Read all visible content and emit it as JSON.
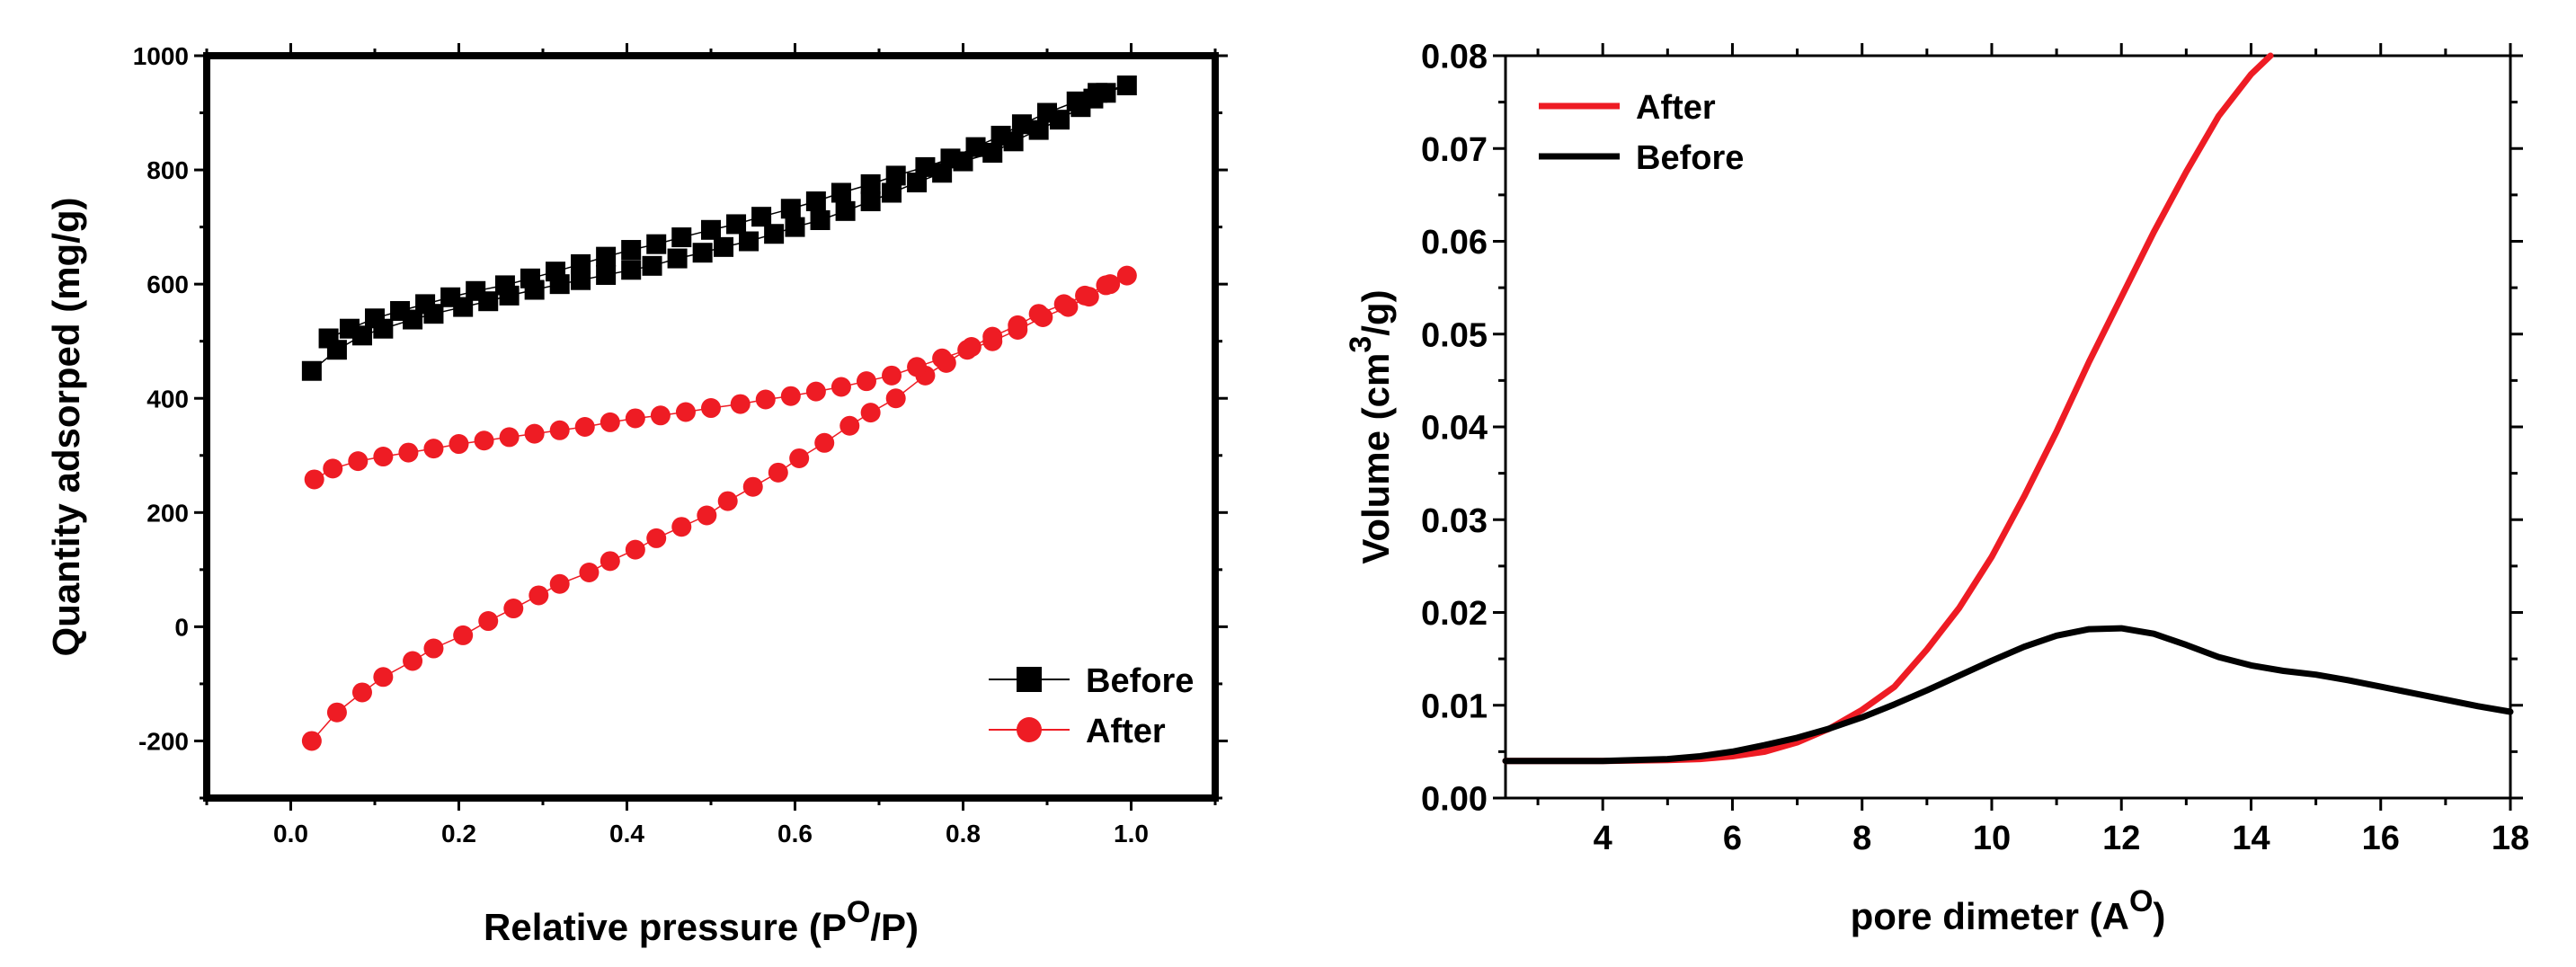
{
  "colors": {
    "before": "#000000",
    "after": "#ee1c24",
    "frame": "#000000"
  },
  "chart_data": [
    {
      "type": "scatter",
      "title": "",
      "xlabel": {
        "prefix": "Relative pressure (P",
        "sup": "O",
        "suffix": "/P)"
      },
      "ylabel": "Quantity adsorped (mg/g)",
      "xlim": [
        -0.1,
        1.1
      ],
      "ylim": [
        -300,
        1000
      ],
      "xticks": [
        0.0,
        0.2,
        0.4,
        0.6,
        0.8,
        1.0
      ],
      "xtick_labels": [
        "0.0",
        "0.2",
        "0.4",
        "0.6",
        "0.8",
        "1.0"
      ],
      "yticks": [
        -200,
        0,
        200,
        400,
        600,
        800,
        1000
      ],
      "ytick_labels": [
        "-200",
        "0",
        "200",
        "400",
        "600",
        "800",
        "1000"
      ],
      "legend_position": "bottom-right",
      "series": [
        {
          "name": "Before",
          "marker": "square",
          "color_key": "before",
          "x": [
            0.025,
            0.055,
            0.085,
            0.11,
            0.145,
            0.17,
            0.205,
            0.235,
            0.26,
            0.29,
            0.32,
            0.345,
            0.375,
            0.405,
            0.43,
            0.46,
            0.49,
            0.515,
            0.545,
            0.575,
            0.6,
            0.63,
            0.66,
            0.69,
            0.715,
            0.745,
            0.775,
            0.8,
            0.835,
            0.86,
            0.89,
            0.915,
            0.94,
            0.955,
            0.97,
            0.995,
            0.96,
            0.935,
            0.9,
            0.87,
            0.845,
            0.815,
            0.785,
            0.755,
            0.72,
            0.69,
            0.655,
            0.625,
            0.595,
            0.56,
            0.53,
            0.5,
            0.465,
            0.435,
            0.405,
            0.375,
            0.345,
            0.315,
            0.285,
            0.255,
            0.22,
            0.19,
            0.16,
            0.13,
            0.1,
            0.07,
            0.045
          ],
          "y": [
            448,
            485,
            510,
            522,
            538,
            548,
            560,
            570,
            580,
            590,
            600,
            607,
            616,
            625,
            632,
            645,
            655,
            665,
            675,
            688,
            700,
            712,
            728,
            745,
            760,
            778,
            795,
            815,
            830,
            850,
            870,
            888,
            910,
            925,
            935,
            948,
            935,
            920,
            900,
            880,
            860,
            840,
            820,
            805,
            790,
            775,
            760,
            745,
            732,
            718,
            705,
            695,
            682,
            670,
            660,
            648,
            635,
            622,
            610,
            598,
            588,
            577,
            565,
            553,
            540,
            522,
            505
          ]
        },
        {
          "name": "After",
          "marker": "circle",
          "color_key": "after",
          "x": [
            0.025,
            0.055,
            0.085,
            0.11,
            0.145,
            0.17,
            0.205,
            0.235,
            0.265,
            0.295,
            0.32,
            0.355,
            0.38,
            0.41,
            0.435,
            0.465,
            0.495,
            0.52,
            0.55,
            0.58,
            0.605,
            0.635,
            0.665,
            0.69,
            0.72,
            0.755,
            0.78,
            0.81,
            0.835,
            0.865,
            0.89,
            0.92,
            0.945,
            0.97,
            0.995,
            0.975,
            0.95,
            0.925,
            0.895,
            0.865,
            0.835,
            0.805,
            0.775,
            0.745,
            0.715,
            0.685,
            0.655,
            0.625,
            0.595,
            0.565,
            0.535,
            0.5,
            0.47,
            0.44,
            0.41,
            0.38,
            0.35,
            0.32,
            0.29,
            0.26,
            0.23,
            0.2,
            0.17,
            0.14,
            0.11,
            0.08,
            0.05,
            0.028
          ],
          "y": [
            -200,
            -150,
            -115,
            -88,
            -60,
            -38,
            -15,
            10,
            32,
            55,
            75,
            95,
            115,
            135,
            155,
            175,
            195,
            220,
            245,
            270,
            295,
            322,
            352,
            375,
            400,
            440,
            462,
            490,
            508,
            528,
            548,
            565,
            580,
            598,
            615,
            600,
            578,
            560,
            542,
            520,
            500,
            485,
            470,
            455,
            440,
            430,
            420,
            412,
            404,
            398,
            390,
            383,
            376,
            370,
            365,
            358,
            350,
            344,
            338,
            332,
            326,
            320,
            312,
            305,
            298,
            290,
            277,
            258
          ]
        }
      ]
    },
    {
      "type": "line",
      "title": "",
      "xlabel": {
        "prefix": "pore dimeter (A",
        "sup": "O",
        "suffix": ")"
      },
      "ylabel": {
        "prefix": "Volume (cm",
        "sup": "3",
        "suffix": "/g)"
      },
      "xlim": [
        2.5,
        18
      ],
      "ylim": [
        0.0,
        0.08
      ],
      "xticks": [
        4,
        6,
        8,
        10,
        12,
        14,
        16,
        18
      ],
      "xtick_labels": [
        "4",
        "6",
        "8",
        "10",
        "12",
        "14",
        "16",
        "18"
      ],
      "yticks": [
        0.0,
        0.01,
        0.02,
        0.03,
        0.04,
        0.05,
        0.06,
        0.07,
        0.08
      ],
      "ytick_labels": [
        "0.00",
        "0.01",
        "0.02",
        "0.03",
        "0.04",
        "0.05",
        "0.06",
        "0.07",
        "0.08"
      ],
      "legend_position": "top-left",
      "series": [
        {
          "name": "After",
          "color_key": "after",
          "x": [
            2.5,
            3,
            4,
            5,
            5.5,
            6,
            6.5,
            7,
            7.5,
            8,
            8.5,
            9,
            9.5,
            10,
            10.5,
            11,
            11.5,
            12,
            12.5,
            13,
            13.5,
            14,
            14.3
          ],
          "y": [
            0.004,
            0.004,
            0.004,
            0.0041,
            0.0042,
            0.0045,
            0.005,
            0.006,
            0.0075,
            0.0095,
            0.012,
            0.016,
            0.0205,
            0.026,
            0.0325,
            0.0395,
            0.047,
            0.054,
            0.061,
            0.0675,
            0.0735,
            0.078,
            0.08
          ]
        },
        {
          "name": "Before",
          "color_key": "before",
          "x": [
            2.5,
            3,
            4,
            5,
            5.5,
            6,
            6.5,
            7,
            7.5,
            8,
            8.5,
            9,
            9.5,
            10,
            10.5,
            11,
            11.5,
            12,
            12.5,
            13,
            13.5,
            14,
            14.5,
            15,
            15.5,
            16,
            16.5,
            17,
            17.5,
            18
          ],
          "y": [
            0.004,
            0.004,
            0.004,
            0.0042,
            0.0045,
            0.005,
            0.0057,
            0.0065,
            0.0075,
            0.0087,
            0.0101,
            0.0116,
            0.0132,
            0.0148,
            0.0163,
            0.0175,
            0.0182,
            0.0183,
            0.0177,
            0.0165,
            0.0152,
            0.0143,
            0.0137,
            0.0133,
            0.0127,
            0.012,
            0.0113,
            0.0106,
            0.0099,
            0.0093
          ]
        }
      ]
    }
  ]
}
